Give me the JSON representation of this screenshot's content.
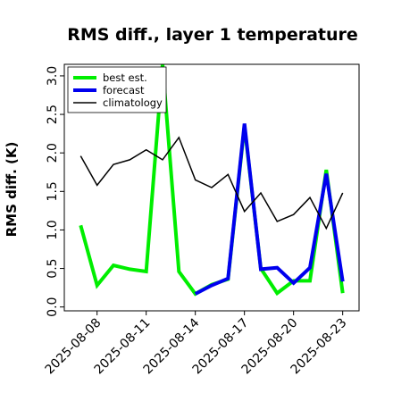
{
  "chart_data": {
    "type": "line",
    "title": "RMS diff., layer 1 temperature",
    "xlabel": "",
    "ylabel": "RMS diff. (K)",
    "x_ticks": [
      "2025-08-08",
      "2025-08-11",
      "2025-08-14",
      "2025-08-17",
      "2025-08-20",
      "2025-08-23"
    ],
    "highlight_tick": "2025-08-14",
    "highlight_color": "#228B22",
    "y_ticks": [
      "0.0",
      "0.5",
      "1.0",
      "1.5",
      "2.0",
      "2.5",
      "3.0"
    ],
    "xlim": [
      "2025-08-06",
      "2025-08-24"
    ],
    "ylim": [
      -0.05,
      3.15
    ],
    "grid": false,
    "legend_position": "top-left",
    "series": [
      {
        "name": "best est.",
        "color": "#00ee00",
        "width": 4,
        "x": [
          "2025-08-07",
          "2025-08-08",
          "2025-08-09",
          "2025-08-10",
          "2025-08-11",
          "2025-08-12",
          "2025-08-13",
          "2025-08-14",
          "2025-08-15",
          "2025-08-16",
          "2025-08-17",
          "2025-08-18",
          "2025-08-19",
          "2025-08-20",
          "2025-08-21",
          "2025-08-22",
          "2025-08-23"
        ],
        "y": [
          1.06,
          0.28,
          0.54,
          0.49,
          0.46,
          3.15,
          0.46,
          0.17,
          0.29,
          0.36,
          2.35,
          0.5,
          0.18,
          0.34,
          0.34,
          1.78,
          0.18
        ]
      },
      {
        "name": "forecast",
        "color": "#0000ee",
        "width": 4,
        "x": [
          "2025-08-14",
          "2025-08-15",
          "2025-08-16",
          "2025-08-17",
          "2025-08-18",
          "2025-08-19",
          "2025-08-20",
          "2025-08-21",
          "2025-08-22",
          "2025-08-23"
        ],
        "y": [
          0.17,
          0.28,
          0.37,
          2.38,
          0.49,
          0.51,
          0.31,
          0.51,
          1.73,
          0.33
        ]
      },
      {
        "name": "climatology",
        "color": "#000000",
        "width": 1.5,
        "x": [
          "2025-08-07",
          "2025-08-08",
          "2025-08-09",
          "2025-08-10",
          "2025-08-11",
          "2025-08-12",
          "2025-08-13",
          "2025-08-14",
          "2025-08-15",
          "2025-08-16",
          "2025-08-17",
          "2025-08-18",
          "2025-08-19",
          "2025-08-20",
          "2025-08-21",
          "2025-08-22",
          "2025-08-23"
        ],
        "y": [
          1.96,
          1.58,
          1.85,
          1.91,
          2.04,
          1.91,
          2.2,
          1.65,
          1.55,
          1.72,
          1.24,
          1.48,
          1.11,
          1.2,
          1.42,
          1.02,
          1.48
        ]
      }
    ]
  }
}
